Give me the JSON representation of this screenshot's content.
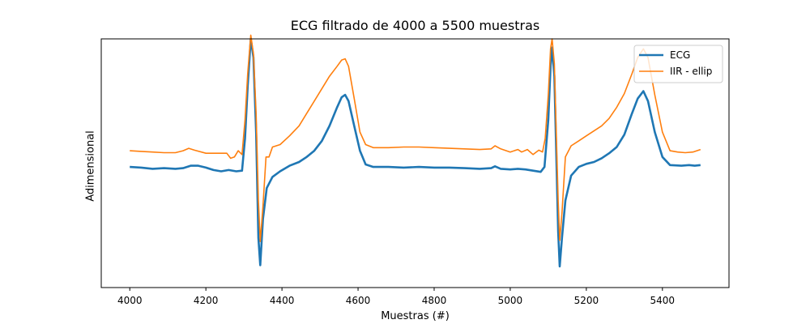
{
  "chart_data": {
    "type": "line",
    "title": "ECG filtrado de 4000 a 5500 muestras",
    "xlabel": "Muestras (#)",
    "ylabel": "Adimensional",
    "xlim": [
      3925,
      5575
    ],
    "ylim": [
      -1.0,
      1.0
    ],
    "xticks": [
      4000,
      4200,
      4400,
      4600,
      4800,
      5000,
      5200,
      5400
    ],
    "xtick_labels": [
      "4000",
      "4200",
      "4400",
      "4600",
      "4800",
      "5000",
      "5200",
      "5400"
    ],
    "yticks_shown": false,
    "grid": false,
    "legend": "top-right",
    "series": [
      {
        "name": "ECG",
        "color": "#1f77b4",
        "points": [
          [
            4000,
            -0.03
          ],
          [
            4030,
            -0.035
          ],
          [
            4060,
            -0.045
          ],
          [
            4090,
            -0.04
          ],
          [
            4120,
            -0.045
          ],
          [
            4140,
            -0.04
          ],
          [
            4160,
            -0.02
          ],
          [
            4180,
            -0.02
          ],
          [
            4200,
            -0.035
          ],
          [
            4220,
            -0.055
          ],
          [
            4240,
            -0.065
          ],
          [
            4260,
            -0.055
          ],
          [
            4280,
            -0.065
          ],
          [
            4295,
            -0.06
          ],
          [
            4303,
            0.2
          ],
          [
            4310,
            0.62
          ],
          [
            4318,
            1.0
          ],
          [
            4325,
            0.85
          ],
          [
            4332,
            0.25
          ],
          [
            4338,
            -0.6
          ],
          [
            4343,
            -0.82
          ],
          [
            4350,
            -0.45
          ],
          [
            4360,
            -0.2
          ],
          [
            4375,
            -0.11
          ],
          [
            4395,
            -0.065
          ],
          [
            4420,
            -0.02
          ],
          [
            4445,
            0.01
          ],
          [
            4465,
            0.05
          ],
          [
            4485,
            0.1
          ],
          [
            4505,
            0.18
          ],
          [
            4525,
            0.3
          ],
          [
            4545,
            0.45
          ],
          [
            4557,
            0.53
          ],
          [
            4566,
            0.55
          ],
          [
            4575,
            0.5
          ],
          [
            4590,
            0.3
          ],
          [
            4605,
            0.1
          ],
          [
            4620,
            -0.01
          ],
          [
            4640,
            -0.03
          ],
          [
            4680,
            -0.03
          ],
          [
            4720,
            -0.035
          ],
          [
            4760,
            -0.03
          ],
          [
            4800,
            -0.035
          ],
          [
            4840,
            -0.035
          ],
          [
            4880,
            -0.04
          ],
          [
            4920,
            -0.045
          ],
          [
            4950,
            -0.04
          ],
          [
            4960,
            -0.025
          ],
          [
            4975,
            -0.045
          ],
          [
            5000,
            -0.05
          ],
          [
            5020,
            -0.045
          ],
          [
            5040,
            -0.05
          ],
          [
            5060,
            -0.06
          ],
          [
            5080,
            -0.07
          ],
          [
            5090,
            -0.03
          ],
          [
            5100,
            0.35
          ],
          [
            5106,
            0.78
          ],
          [
            5110,
            0.93
          ],
          [
            5116,
            0.7
          ],
          [
            5120,
            0.2
          ],
          [
            5126,
            -0.55
          ],
          [
            5130,
            -0.83
          ],
          [
            5136,
            -0.6
          ],
          [
            5145,
            -0.3
          ],
          [
            5160,
            -0.1
          ],
          [
            5180,
            -0.03
          ],
          [
            5200,
            -0.005
          ],
          [
            5220,
            0.01
          ],
          [
            5240,
            0.04
          ],
          [
            5260,
            0.08
          ],
          [
            5280,
            0.13
          ],
          [
            5300,
            0.23
          ],
          [
            5320,
            0.4
          ],
          [
            5335,
            0.52
          ],
          [
            5350,
            0.58
          ],
          [
            5362,
            0.5
          ],
          [
            5380,
            0.25
          ],
          [
            5400,
            0.05
          ],
          [
            5420,
            -0.015
          ],
          [
            5450,
            -0.02
          ],
          [
            5470,
            -0.015
          ],
          [
            5485,
            -0.02
          ],
          [
            5500,
            -0.015
          ]
        ]
      },
      {
        "name": "IIR - ellip",
        "color": "#ff7f0e",
        "points": [
          [
            4000,
            0.1
          ],
          [
            4030,
            0.095
          ],
          [
            4060,
            0.09
          ],
          [
            4090,
            0.085
          ],
          [
            4120,
            0.085
          ],
          [
            4140,
            0.1
          ],
          [
            4155,
            0.12
          ],
          [
            4170,
            0.105
          ],
          [
            4200,
            0.08
          ],
          [
            4230,
            0.08
          ],
          [
            4255,
            0.08
          ],
          [
            4265,
            0.04
          ],
          [
            4275,
            0.05
          ],
          [
            4285,
            0.1
          ],
          [
            4295,
            0.07
          ],
          [
            4303,
            0.35
          ],
          [
            4310,
            0.72
          ],
          [
            4318,
            1.03
          ],
          [
            4325,
            0.88
          ],
          [
            4332,
            0.4
          ],
          [
            4338,
            -0.3
          ],
          [
            4343,
            -0.63
          ],
          [
            4350,
            -0.35
          ],
          [
            4358,
            0.05
          ],
          [
            4366,
            0.05
          ],
          [
            4375,
            0.13
          ],
          [
            4395,
            0.15
          ],
          [
            4420,
            0.22
          ],
          [
            4445,
            0.3
          ],
          [
            4465,
            0.4
          ],
          [
            4485,
            0.5
          ],
          [
            4505,
            0.6
          ],
          [
            4525,
            0.7
          ],
          [
            4545,
            0.78
          ],
          [
            4557,
            0.83
          ],
          [
            4566,
            0.84
          ],
          [
            4575,
            0.78
          ],
          [
            4590,
            0.52
          ],
          [
            4605,
            0.25
          ],
          [
            4620,
            0.15
          ],
          [
            4640,
            0.125
          ],
          [
            4680,
            0.125
          ],
          [
            4720,
            0.13
          ],
          [
            4760,
            0.13
          ],
          [
            4800,
            0.125
          ],
          [
            4840,
            0.12
          ],
          [
            4880,
            0.115
          ],
          [
            4920,
            0.11
          ],
          [
            4950,
            0.115
          ],
          [
            4960,
            0.14
          ],
          [
            4975,
            0.115
          ],
          [
            5000,
            0.09
          ],
          [
            5020,
            0.11
          ],
          [
            5030,
            0.09
          ],
          [
            5045,
            0.11
          ],
          [
            5060,
            0.07
          ],
          [
            5075,
            0.105
          ],
          [
            5085,
            0.09
          ],
          [
            5092,
            0.2
          ],
          [
            5100,
            0.55
          ],
          [
            5106,
            0.92
          ],
          [
            5110,
            1.0
          ],
          [
            5116,
            0.8
          ],
          [
            5120,
            0.35
          ],
          [
            5126,
            -0.3
          ],
          [
            5130,
            -0.62
          ],
          [
            5136,
            -0.4
          ],
          [
            5145,
            0.05
          ],
          [
            5160,
            0.14
          ],
          [
            5180,
            0.18
          ],
          [
            5200,
            0.22
          ],
          [
            5220,
            0.26
          ],
          [
            5240,
            0.3
          ],
          [
            5260,
            0.36
          ],
          [
            5280,
            0.45
          ],
          [
            5300,
            0.56
          ],
          [
            5320,
            0.72
          ],
          [
            5335,
            0.85
          ],
          [
            5350,
            0.92
          ],
          [
            5362,
            0.85
          ],
          [
            5380,
            0.55
          ],
          [
            5400,
            0.25
          ],
          [
            5420,
            0.1
          ],
          [
            5440,
            0.09
          ],
          [
            5460,
            0.085
          ],
          [
            5480,
            0.09
          ],
          [
            5500,
            0.11
          ]
        ]
      }
    ]
  }
}
